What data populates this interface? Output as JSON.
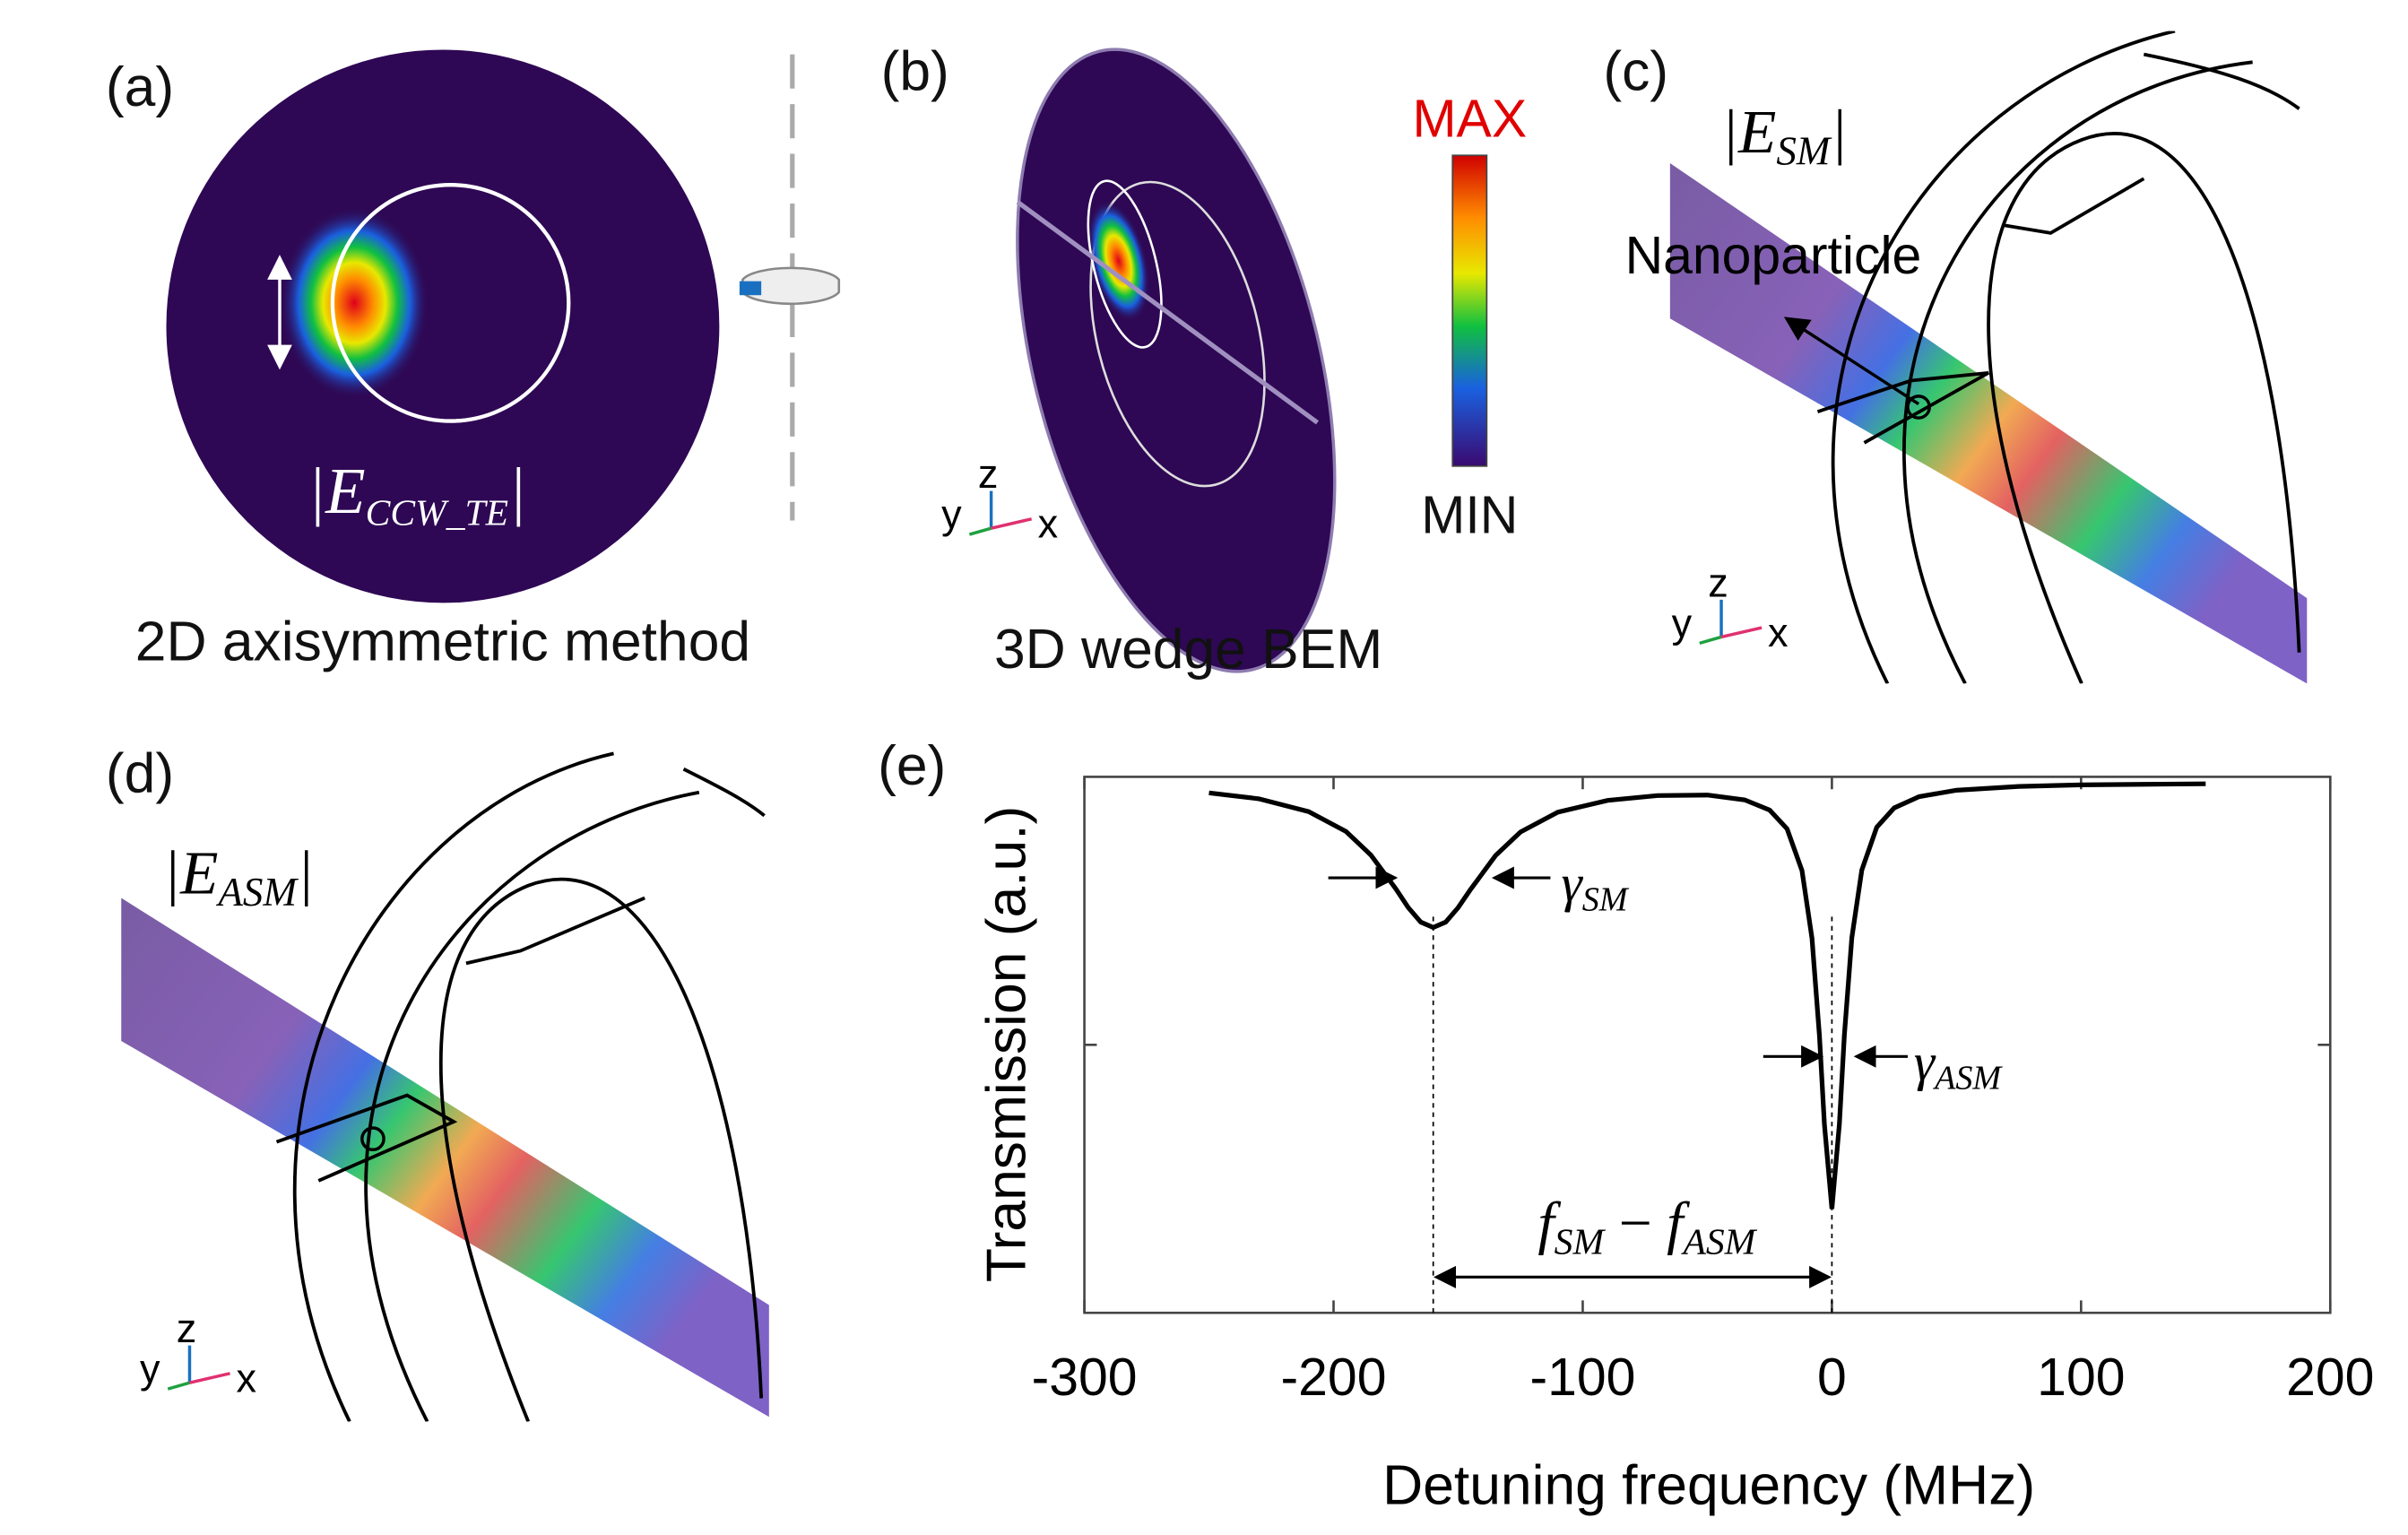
{
  "panel_a": {
    "label": "(a)",
    "field": {
      "open": "|E",
      "subscript": "CCW_TE",
      "close": "|"
    },
    "caption": "2D axisymmetric method"
  },
  "panel_b": {
    "label": "(b)",
    "caption": "3D wedge BEM",
    "colorbar": {
      "max": "MAX",
      "min": "MIN"
    },
    "axes": {
      "y": "y",
      "z": "z",
      "x": "x"
    }
  },
  "panel_c": {
    "label": "(c)",
    "field": {
      "open": "|E",
      "subscript": "SM",
      "close": "|"
    },
    "annotation": "Nanoparticle",
    "axes": {
      "y": "y",
      "z": "z",
      "x": "x"
    }
  },
  "panel_d": {
    "label": "(d)",
    "field": {
      "open": "|E",
      "subscript": "ASM",
      "close": "|"
    },
    "axes": {
      "y": "y",
      "z": "z",
      "x": "x"
    }
  },
  "chart_data": {
    "type": "line",
    "label": "(e)",
    "xlabel": "Detuning frequency (MHz)",
    "ylabel": "Transmission (a.u.)",
    "color": "#000000",
    "x": [
      -250,
      -230,
      -210,
      -195,
      -185,
      -175,
      -170,
      -165,
      -160,
      -155,
      -150,
      -145,
      -135,
      -125,
      -110,
      -90,
      -70,
      -50,
      -35,
      -25,
      -18,
      -12,
      -8,
      -5,
      -3,
      0,
      3,
      5,
      8,
      12,
      18,
      25,
      35,
      50,
      75,
      100,
      125,
      150
    ],
    "values": [
      0.97,
      0.959,
      0.935,
      0.898,
      0.854,
      0.791,
      0.756,
      0.729,
      0.719,
      0.729,
      0.756,
      0.79,
      0.853,
      0.897,
      0.934,
      0.956,
      0.965,
      0.966,
      0.957,
      0.938,
      0.903,
      0.825,
      0.699,
      0.517,
      0.351,
      0.194,
      0.352,
      0.518,
      0.7,
      0.826,
      0.906,
      0.942,
      0.963,
      0.975,
      0.982,
      0.985,
      0.986,
      0.987
    ],
    "xlim": [
      -300,
      200
    ],
    "xticks": [
      -300,
      -200,
      -100,
      0,
      100,
      200
    ],
    "ylim": [
      0,
      1
    ],
    "yticks": [
      0.5
    ],
    "markers": [
      -160,
      0
    ],
    "annotations": {
      "width_sm": {
        "symbol": "γ",
        "subscript": "SM"
      },
      "width_asm": {
        "symbol": "γ",
        "subscript": "ASM"
      },
      "split": {
        "a": "f",
        "a_sub": "SM",
        "op": " − ",
        "b": "f",
        "b_sub": "ASM"
      }
    }
  }
}
